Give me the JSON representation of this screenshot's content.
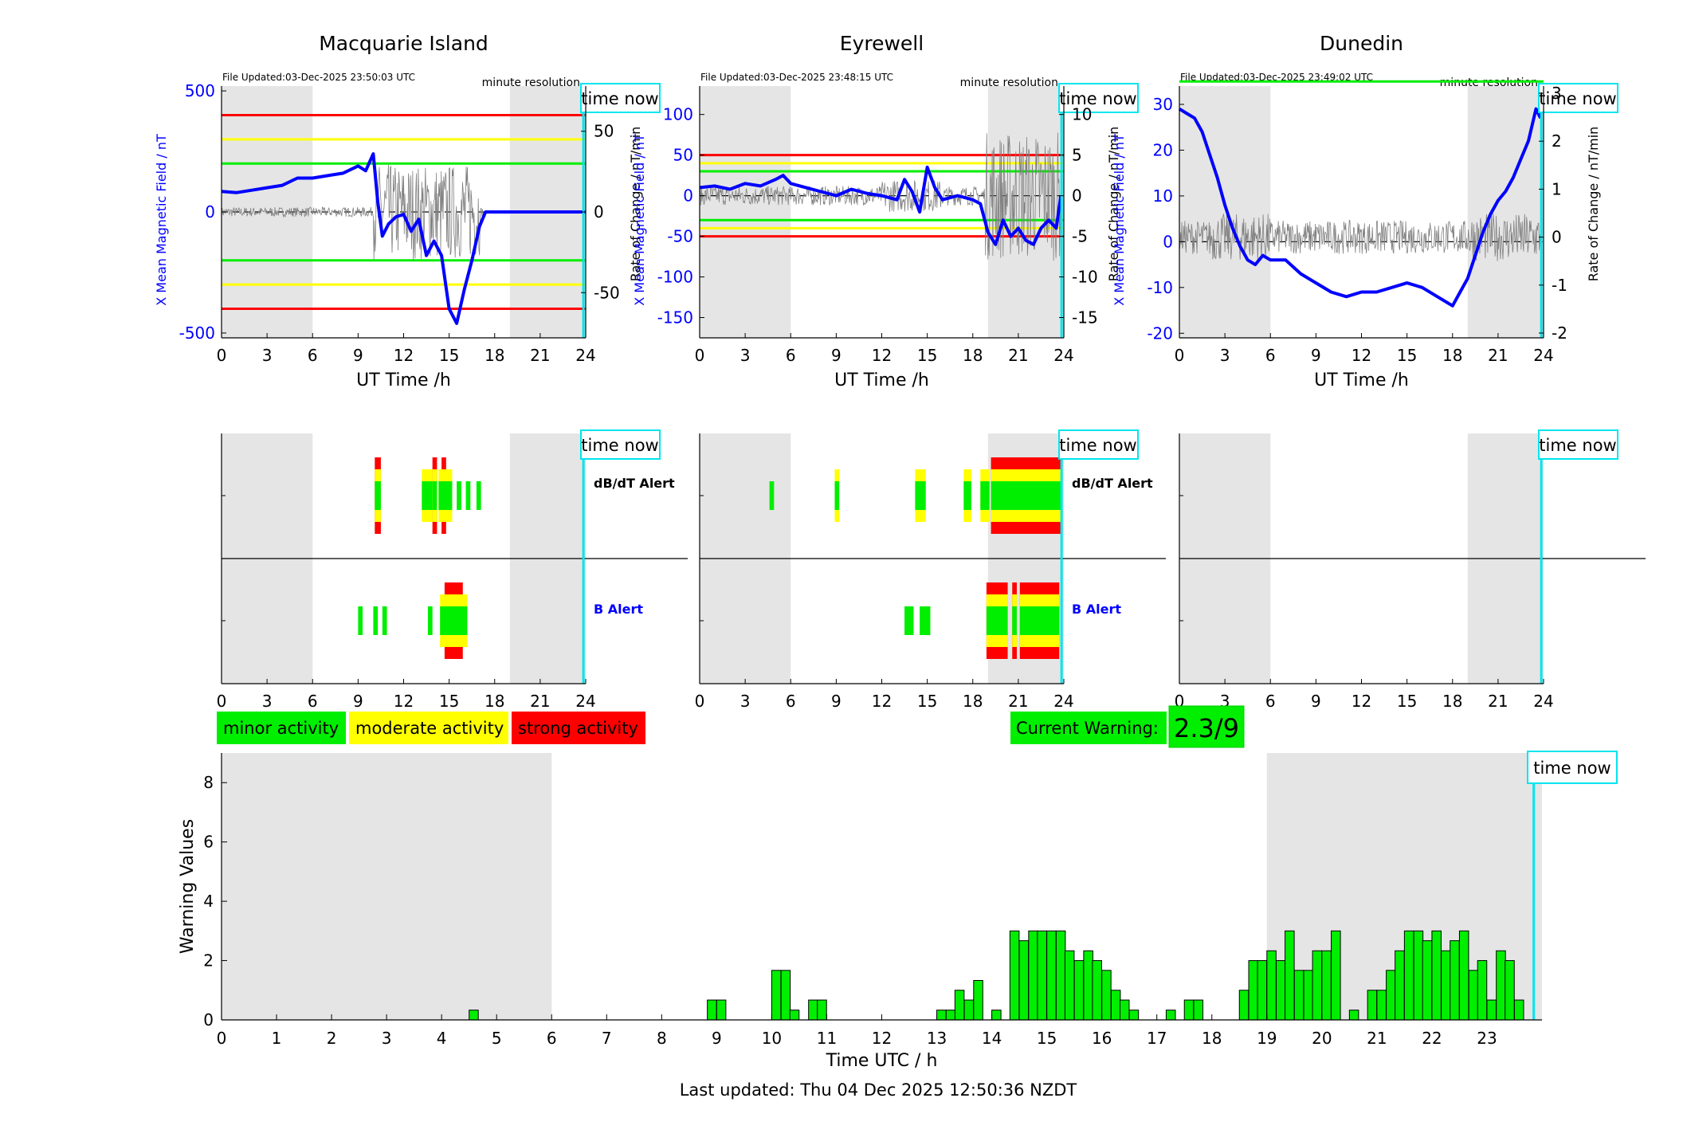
{
  "footer": {
    "last_updated": "Last updated: Thu 04 Dec 2025 12:50:36 NZDT"
  },
  "current_warning": {
    "label": "Current Warning:",
    "value": "2.3/9",
    "color": "#00ee00"
  },
  "legend": [
    {
      "label": "minor activity",
      "color": "#00ee00"
    },
    {
      "label": "moderate activity",
      "color": "#ffff00"
    },
    {
      "label": "strong activity",
      "color": "#ff0000"
    }
  ],
  "common": {
    "time_now_label": "time now",
    "minute_resolution": "minute resolution",
    "x_label": "UT Time /h",
    "x_ticks": [
      0,
      3,
      6,
      9,
      12,
      15,
      18,
      21,
      24
    ],
    "dbdt_alert_label": "dB/dT Alert",
    "b_alert_label": "B Alert",
    "now_hour": 23.85,
    "night_shading": [
      [
        0,
        6
      ],
      [
        19,
        24
      ]
    ],
    "colors": {
      "field_line": "#0000ff",
      "rate_line": "#808080",
      "now_line": "#00e5ee",
      "shade": "#e5e5e5"
    }
  },
  "stations": [
    {
      "name": "Macquarie Island",
      "file_updated": "File Updated:03-Dec-2025 23:50:03 UTC",
      "left_ylabel": "X Mean Magnetic Field / nT",
      "right_ylabel": "Rate of Change / nT/min",
      "left_ylim": [
        -520,
        520
      ],
      "left_ticks": [
        -500,
        0,
        500
      ],
      "right_ylim": [
        -78,
        78
      ],
      "right_ticks": [
        -50,
        0,
        50
      ],
      "threshold_lines": [
        {
          "value": 400,
          "color": "#ff0000"
        },
        {
          "value": 300,
          "color": "#ffff00"
        },
        {
          "value": 200,
          "color": "#00ee00"
        },
        {
          "value": -200,
          "color": "#00ee00"
        },
        {
          "value": -300,
          "color": "#ffff00"
        },
        {
          "value": -400,
          "color": "#ff0000"
        }
      ],
      "field_series": [
        [
          0,
          85
        ],
        [
          1,
          80
        ],
        [
          2,
          90
        ],
        [
          3,
          100
        ],
        [
          4,
          110
        ],
        [
          5,
          140
        ],
        [
          6,
          140
        ],
        [
          7,
          150
        ],
        [
          8,
          160
        ],
        [
          9,
          190
        ],
        [
          9.5,
          170
        ],
        [
          10,
          240
        ],
        [
          10.3,
          40
        ],
        [
          10.6,
          -100
        ],
        [
          11,
          -50
        ],
        [
          11.5,
          -20
        ],
        [
          12,
          -10
        ],
        [
          12.5,
          -80
        ],
        [
          13,
          -30
        ],
        [
          13.5,
          -180
        ],
        [
          14,
          -120
        ],
        [
          14.5,
          -180
        ],
        [
          15,
          -400
        ],
        [
          15.5,
          -460
        ],
        [
          16,
          -320
        ],
        [
          16.5,
          -200
        ],
        [
          17,
          -60
        ],
        [
          17.4,
          0
        ],
        [
          18,
          0
        ],
        [
          20,
          0
        ],
        [
          22,
          0
        ],
        [
          24,
          0
        ]
      ],
      "dbdt_alerts": [
        {
          "start": 10.1,
          "end": 10.5,
          "level": 3
        },
        {
          "start": 13.2,
          "end": 13.9,
          "level": 2
        },
        {
          "start": 13.9,
          "end": 14.2,
          "level": 3
        },
        {
          "start": 14.3,
          "end": 15.2,
          "level": 2
        },
        {
          "start": 14.5,
          "end": 14.8,
          "level": 3
        },
        {
          "start": 15.5,
          "end": 15.8,
          "level": 1
        },
        {
          "start": 16.1,
          "end": 16.4,
          "level": 1
        },
        {
          "start": 16.8,
          "end": 17.1,
          "level": 1
        }
      ],
      "b_alerts": [
        {
          "start": 9.0,
          "end": 9.3,
          "level": 1
        },
        {
          "start": 10.0,
          "end": 10.3,
          "level": 1
        },
        {
          "start": 10.6,
          "end": 10.9,
          "level": 1
        },
        {
          "start": 13.6,
          "end": 13.9,
          "level": 1
        },
        {
          "start": 14.4,
          "end": 16.2,
          "level": 2
        },
        {
          "start": 14.7,
          "end": 15.9,
          "level": 3
        }
      ]
    },
    {
      "name": "Eyrewell",
      "file_updated": "File Updated:03-Dec-2025 23:48:15 UTC",
      "left_ylabel": "X Mean Magnetic Field / nT",
      "right_ylabel": "Rate of Change / nT/min",
      "left_ylim": [
        -175,
        135
      ],
      "left_ticks": [
        -150,
        -100,
        -50,
        0,
        50,
        100
      ],
      "right_ylim": [
        -17.5,
        13.5
      ],
      "right_ticks": [
        -15,
        -10,
        -5,
        0,
        5,
        10
      ],
      "threshold_lines": [
        {
          "value": 50,
          "color": "#ff0000"
        },
        {
          "value": 40,
          "color": "#ffff00"
        },
        {
          "value": 30,
          "color": "#00ee00"
        },
        {
          "value": -30,
          "color": "#00ee00"
        },
        {
          "value": -40,
          "color": "#ffff00"
        },
        {
          "value": -50,
          "color": "#ff0000"
        }
      ],
      "field_series": [
        [
          0,
          10
        ],
        [
          1,
          12
        ],
        [
          2,
          8
        ],
        [
          3,
          15
        ],
        [
          4,
          12
        ],
        [
          5,
          20
        ],
        [
          5.5,
          25
        ],
        [
          6,
          15
        ],
        [
          7,
          10
        ],
        [
          8,
          5
        ],
        [
          9,
          0
        ],
        [
          10,
          8
        ],
        [
          11,
          3
        ],
        [
          12,
          0
        ],
        [
          13,
          -5
        ],
        [
          13.5,
          20
        ],
        [
          14,
          5
        ],
        [
          14.5,
          -20
        ],
        [
          15,
          35
        ],
        [
          15.5,
          10
        ],
        [
          16,
          -5
        ],
        [
          17,
          0
        ],
        [
          18,
          -5
        ],
        [
          18.5,
          -10
        ],
        [
          19,
          -45
        ],
        [
          19.5,
          -60
        ],
        [
          20,
          -30
        ],
        [
          20.5,
          -50
        ],
        [
          21,
          -40
        ],
        [
          21.5,
          -55
        ],
        [
          22,
          -60
        ],
        [
          22.5,
          -40
        ],
        [
          23,
          -30
        ],
        [
          23.5,
          -40
        ],
        [
          23.8,
          0
        ]
      ],
      "dbdt_alerts": [
        {
          "start": 4.6,
          "end": 4.9,
          "level": 1
        },
        {
          "start": 8.9,
          "end": 9.2,
          "level": 2
        },
        {
          "start": 14.2,
          "end": 14.9,
          "level": 2
        },
        {
          "start": 17.4,
          "end": 17.9,
          "level": 2
        },
        {
          "start": 18.5,
          "end": 19.1,
          "level": 2
        },
        {
          "start": 19.2,
          "end": 23.8,
          "level": 3
        }
      ],
      "b_alerts": [
        {
          "start": 13.5,
          "end": 14.1,
          "level": 1
        },
        {
          "start": 14.5,
          "end": 15.2,
          "level": 1
        },
        {
          "start": 18.9,
          "end": 20.3,
          "level": 3
        },
        {
          "start": 20.6,
          "end": 20.9,
          "level": 3
        },
        {
          "start": 21.1,
          "end": 23.7,
          "level": 3
        }
      ]
    },
    {
      "name": "Dunedin",
      "file_updated": "File Updated:03-Dec-2025 23:49:02 UTC",
      "left_ylabel": "X Mean Magnetic Field / nT",
      "right_ylabel": "Rate of Change / nT/min",
      "left_ylim": [
        -21,
        34
      ],
      "left_ticks": [
        -20,
        -10,
        0,
        10,
        20,
        30
      ],
      "right_ylim": [
        -2.1,
        3.15
      ],
      "right_ticks": [
        -2,
        -1,
        0,
        1,
        2,
        3
      ],
      "threshold_lines": [
        {
          "value": 35,
          "color": "#00ee00"
        }
      ],
      "field_series": [
        [
          0,
          29
        ],
        [
          0.5,
          28
        ],
        [
          1,
          27
        ],
        [
          1.5,
          24
        ],
        [
          2,
          19
        ],
        [
          2.5,
          14
        ],
        [
          3,
          8
        ],
        [
          3.5,
          3
        ],
        [
          4,
          -1
        ],
        [
          4.5,
          -4
        ],
        [
          5,
          -5
        ],
        [
          5.5,
          -3
        ],
        [
          6,
          -4
        ],
        [
          7,
          -4
        ],
        [
          8,
          -7
        ],
        [
          9,
          -9
        ],
        [
          10,
          -11
        ],
        [
          11,
          -12
        ],
        [
          12,
          -11
        ],
        [
          13,
          -11
        ],
        [
          14,
          -10
        ],
        [
          15,
          -9
        ],
        [
          16,
          -10
        ],
        [
          17,
          -12
        ],
        [
          18,
          -14
        ],
        [
          18.5,
          -11
        ],
        [
          19,
          -8
        ],
        [
          19.5,
          -3
        ],
        [
          20,
          2
        ],
        [
          20.5,
          6
        ],
        [
          21,
          9
        ],
        [
          21.5,
          11
        ],
        [
          22,
          14
        ],
        [
          22.5,
          18
        ],
        [
          23,
          22
        ],
        [
          23.5,
          29
        ],
        [
          23.8,
          27
        ]
      ],
      "dbdt_alerts": [],
      "b_alerts": []
    }
  ],
  "warning_chart": {
    "type": "bar",
    "xlabel": "Time UTC / h",
    "ylabel": "Warning Values",
    "ylim": [
      0,
      9
    ],
    "y_ticks": [
      0,
      2,
      4,
      6,
      8
    ],
    "x_ticks": [
      0,
      1,
      2,
      3,
      4,
      5,
      6,
      7,
      8,
      9,
      10,
      11,
      12,
      13,
      14,
      15,
      16,
      17,
      18,
      19,
      20,
      21,
      22,
      23
    ],
    "xlim": [
      0,
      24
    ],
    "bar_width_hours": 0.16667,
    "bar_color": "#00ee00",
    "night_shading": [
      [
        0,
        6
      ],
      [
        19,
        24
      ]
    ],
    "now_hour": 23.85,
    "bars": [
      [
        4.5,
        0.33
      ],
      [
        8.83,
        0.67
      ],
      [
        9.0,
        0.67
      ],
      [
        10.0,
        1.67
      ],
      [
        10.17,
        1.67
      ],
      [
        10.33,
        0.33
      ],
      [
        10.67,
        0.67
      ],
      [
        10.83,
        0.67
      ],
      [
        13.0,
        0.33
      ],
      [
        13.17,
        0.33
      ],
      [
        13.33,
        1.0
      ],
      [
        13.5,
        0.67
      ],
      [
        13.67,
        1.33
      ],
      [
        14.0,
        0.33
      ],
      [
        14.33,
        3
      ],
      [
        14.5,
        2.67
      ],
      [
        14.67,
        3
      ],
      [
        14.83,
        3
      ],
      [
        15.0,
        3
      ],
      [
        15.17,
        3
      ],
      [
        15.33,
        2.33
      ],
      [
        15.5,
        2
      ],
      [
        15.67,
        2.33
      ],
      [
        15.83,
        2
      ],
      [
        16.0,
        1.67
      ],
      [
        16.17,
        1.0
      ],
      [
        16.33,
        0.67
      ],
      [
        16.5,
        0.33
      ],
      [
        17.17,
        0.33
      ],
      [
        17.5,
        0.67
      ],
      [
        17.67,
        0.67
      ],
      [
        18.5,
        1.0
      ],
      [
        18.67,
        2.0
      ],
      [
        18.83,
        2.0
      ],
      [
        19.0,
        2.33
      ],
      [
        19.17,
        2.0
      ],
      [
        19.33,
        3
      ],
      [
        19.5,
        1.67
      ],
      [
        19.67,
        1.67
      ],
      [
        19.83,
        2.33
      ],
      [
        20.0,
        2.33
      ],
      [
        20.17,
        3
      ],
      [
        20.5,
        0.33
      ],
      [
        20.83,
        1.0
      ],
      [
        21.0,
        1.0
      ],
      [
        21.17,
        1.67
      ],
      [
        21.33,
        2.33
      ],
      [
        21.5,
        3
      ],
      [
        21.67,
        3
      ],
      [
        21.83,
        2.67
      ],
      [
        22.0,
        3
      ],
      [
        22.17,
        2.33
      ],
      [
        22.33,
        2.67
      ],
      [
        22.5,
        3
      ],
      [
        22.67,
        1.67
      ],
      [
        22.83,
        2.0
      ],
      [
        23.0,
        0.67
      ],
      [
        23.17,
        2.33
      ],
      [
        23.33,
        2.0
      ],
      [
        23.5,
        0.67
      ]
    ]
  }
}
